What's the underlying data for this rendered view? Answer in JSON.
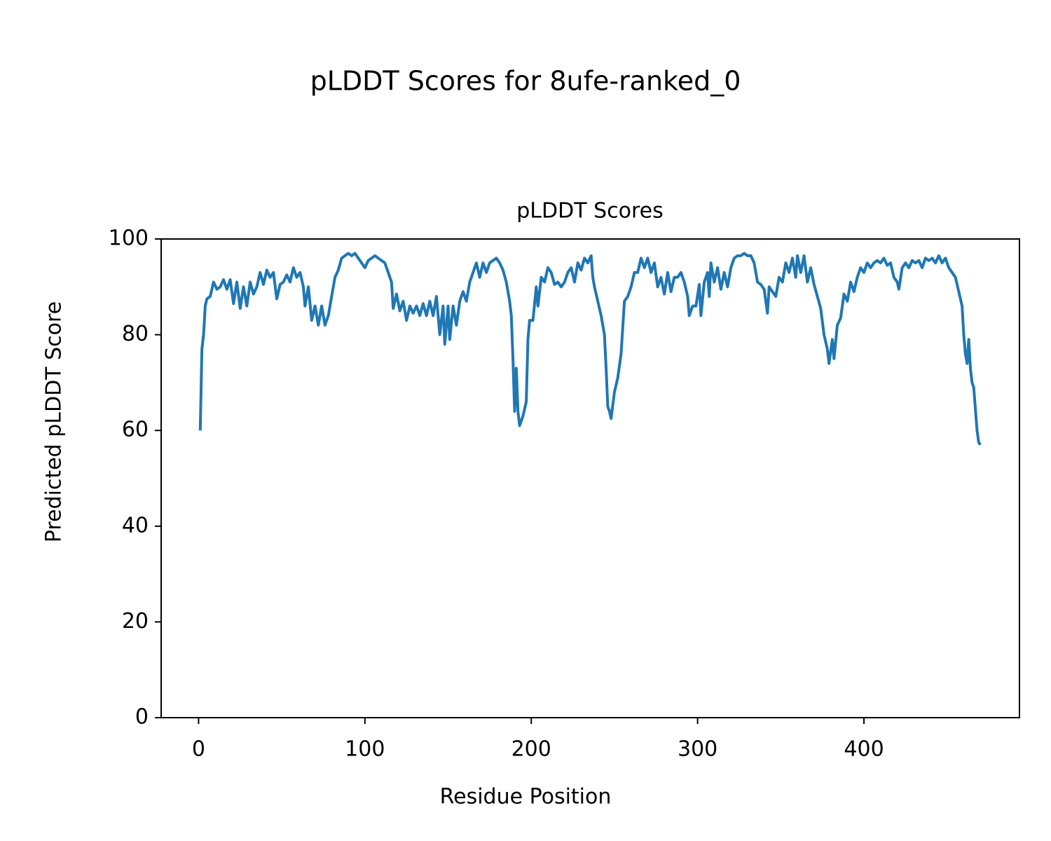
{
  "chart_data": {
    "type": "line",
    "suptitle": "pLDDT Scores for 8ufe-ranked_0",
    "title": "pLDDT Scores",
    "xlabel": "Residue Position",
    "ylabel": "Predicted pLDDT Score",
    "xlim": [
      -22.5,
      493.5
    ],
    "xticks": [
      0,
      100,
      200,
      300,
      400
    ],
    "ylim": [
      0,
      100
    ],
    "yticks": [
      0,
      20,
      40,
      60,
      80,
      100
    ],
    "grid": false,
    "series": [
      {
        "name": "pLDDT",
        "color": "#1f77b4",
        "x": [
          1,
          2,
          3,
          4,
          5,
          7,
          9,
          11,
          13,
          15,
          17,
          19,
          21,
          23,
          25,
          27,
          29,
          31,
          33,
          35,
          37,
          39,
          41,
          43,
          45,
          47,
          49,
          51,
          53,
          55,
          57,
          59,
          61,
          63,
          64,
          66,
          68,
          70,
          72,
          74,
          76,
          78,
          80,
          82,
          84,
          86,
          88,
          90,
          92,
          94,
          96,
          98,
          100,
          102,
          104,
          106,
          108,
          110,
          112,
          114,
          116,
          117,
          119,
          121,
          123,
          125,
          127,
          129,
          131,
          133,
          135,
          137,
          139,
          141,
          143,
          145,
          147,
          148,
          150,
          151,
          153,
          155,
          157,
          159,
          161,
          163,
          165,
          167,
          169,
          171,
          173,
          175,
          177,
          179,
          181,
          183,
          185,
          187,
          188,
          189,
          190,
          191,
          192,
          193,
          195,
          197,
          198,
          199,
          201,
          203,
          204,
          206,
          208,
          210,
          212,
          214,
          216,
          218,
          220,
          222,
          224,
          226,
          228,
          230,
          232,
          234,
          236,
          237,
          238,
          240,
          242,
          244,
          245,
          246,
          247,
          248,
          250,
          252,
          254,
          256,
          258,
          260,
          262,
          264,
          266,
          268,
          270,
          272,
          274,
          276,
          278,
          280,
          282,
          284,
          286,
          288,
          290,
          292,
          294,
          295,
          297,
          299,
          301,
          302,
          304,
          306,
          307,
          308,
          310,
          312,
          314,
          316,
          318,
          320,
          322,
          324,
          326,
          328,
          330,
          332,
          334,
          336,
          338,
          340,
          342,
          343,
          345,
          347,
          349,
          351,
          353,
          355,
          357,
          359,
          360,
          362,
          364,
          366,
          368,
          370,
          372,
          374,
          376,
          378,
          379,
          381,
          382,
          384,
          386,
          388,
          390,
          392,
          394,
          396,
          398,
          400,
          402,
          404,
          406,
          408,
          410,
          412,
          414,
          416,
          418,
          420,
          421,
          423,
          425,
          427,
          429,
          431,
          433,
          435,
          437,
          439,
          441,
          443,
          445,
          447,
          449,
          451,
          453,
          455,
          457,
          459,
          460,
          461,
          462,
          463,
          464,
          465,
          466,
          468,
          469,
          470
        ],
        "values": [
          60,
          77,
          80,
          86,
          87.5,
          88,
          91,
          89.5,
          90,
          91.5,
          89.5,
          91.5,
          86.5,
          91,
          85.5,
          90,
          86,
          91,
          88.5,
          90,
          93,
          90.5,
          93.5,
          92,
          93,
          87.5,
          90.5,
          91,
          92.5,
          91,
          94,
          92,
          93,
          90,
          86,
          90,
          83,
          86,
          82,
          86,
          82,
          84,
          88,
          92,
          93.5,
          96,
          96.5,
          97,
          96.5,
          97,
          96,
          95,
          94,
          95.5,
          96,
          96.5,
          96,
          95.5,
          95,
          93,
          91,
          85.5,
          88.5,
          85,
          87,
          83,
          86,
          84.5,
          86,
          84,
          86.5,
          84,
          87,
          84,
          88,
          80,
          86,
          78,
          86,
          79,
          86,
          82,
          87,
          89,
          87,
          91,
          93,
          95,
          92,
          95,
          93,
          95,
          95.5,
          96,
          95,
          93.5,
          91,
          87,
          84,
          75,
          64,
          73,
          64,
          61,
          63,
          66,
          79,
          83,
          83,
          90,
          86,
          92,
          91,
          94,
          93,
          90.5,
          91,
          90,
          91,
          93,
          94,
          91,
          95,
          93.5,
          96,
          95,
          96.5,
          92,
          90,
          87,
          84,
          80,
          73,
          65,
          64,
          62.5,
          68,
          71,
          76,
          87,
          88,
          90,
          93,
          93,
          96,
          94,
          96,
          93,
          95,
          90,
          92,
          88.5,
          93,
          89,
          92,
          92,
          93,
          91,
          88,
          84,
          86,
          86,
          90.5,
          84,
          91,
          93,
          88,
          95,
          91,
          94,
          89.5,
          93,
          90,
          94,
          96,
          96.5,
          96.5,
          97,
          96.5,
          96.5,
          95,
          91,
          90.5,
          89.5,
          84.5,
          90,
          89,
          88,
          92,
          91,
          95,
          93,
          96,
          92,
          96.5,
          93,
          96.5,
          91,
          94,
          90.5,
          88,
          85.5,
          80,
          77,
          74,
          79,
          75,
          82,
          83.5,
          88.5,
          87,
          91,
          89,
          92,
          94,
          93,
          95,
          94,
          95,
          95.5,
          95,
          96,
          94.5,
          95,
          92,
          91,
          89.5,
          94,
          95,
          94,
          95.5,
          95,
          95.5,
          94,
          96,
          95.5,
          96,
          95,
          96.5,
          95,
          96,
          94,
          93,
          92,
          89,
          86,
          80,
          76,
          74,
          79,
          73,
          70,
          69,
          60,
          57.5,
          57
        ]
      }
    ]
  }
}
